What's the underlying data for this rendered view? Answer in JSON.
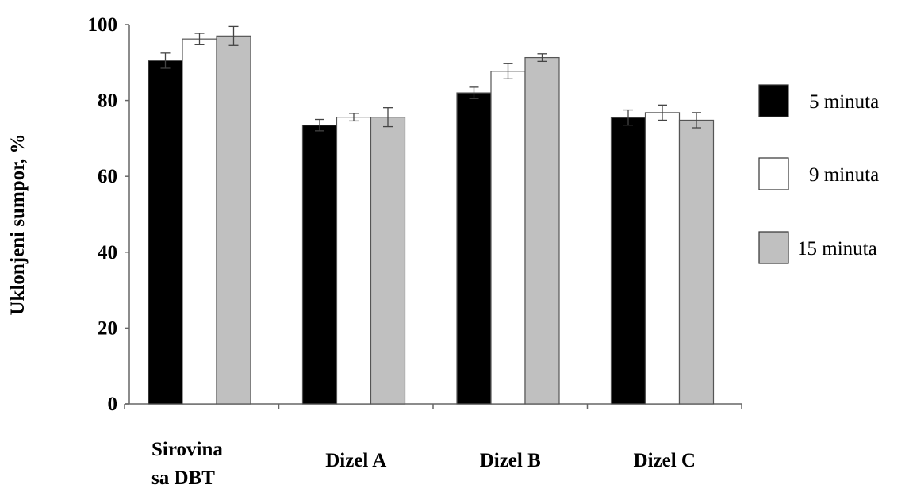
{
  "chart_data": {
    "type": "bar",
    "title": "",
    "ylabel": "Uklonjeni sumpor, %",
    "xlabel": "",
    "ylim": [
      0,
      100
    ],
    "yticks": [
      0,
      20,
      40,
      60,
      80,
      100
    ],
    "categories": [
      [
        "Sirovina",
        "sa DBT"
      ],
      [
        "Dizel A"
      ],
      [
        "Dizel B"
      ],
      [
        "Dizel C"
      ]
    ],
    "series": [
      {
        "name": "5 minuta",
        "color": "#000000",
        "values": [
          90.5,
          73.5,
          82.0,
          75.5
        ],
        "errors": [
          2.0,
          1.5,
          1.5,
          2.0
        ]
      },
      {
        "name": "9 minuta",
        "color": "#ffffff",
        "values": [
          96.2,
          75.6,
          87.7,
          76.8
        ],
        "errors": [
          1.5,
          1.0,
          2.0,
          2.0
        ]
      },
      {
        "name": "15 minuta",
        "color": "#c0c0c0",
        "values": [
          97.0,
          75.6,
          91.3,
          74.8
        ],
        "errors": [
          2.5,
          2.5,
          1.0,
          2.0
        ]
      }
    ],
    "legend_position": "right",
    "grid": false
  }
}
